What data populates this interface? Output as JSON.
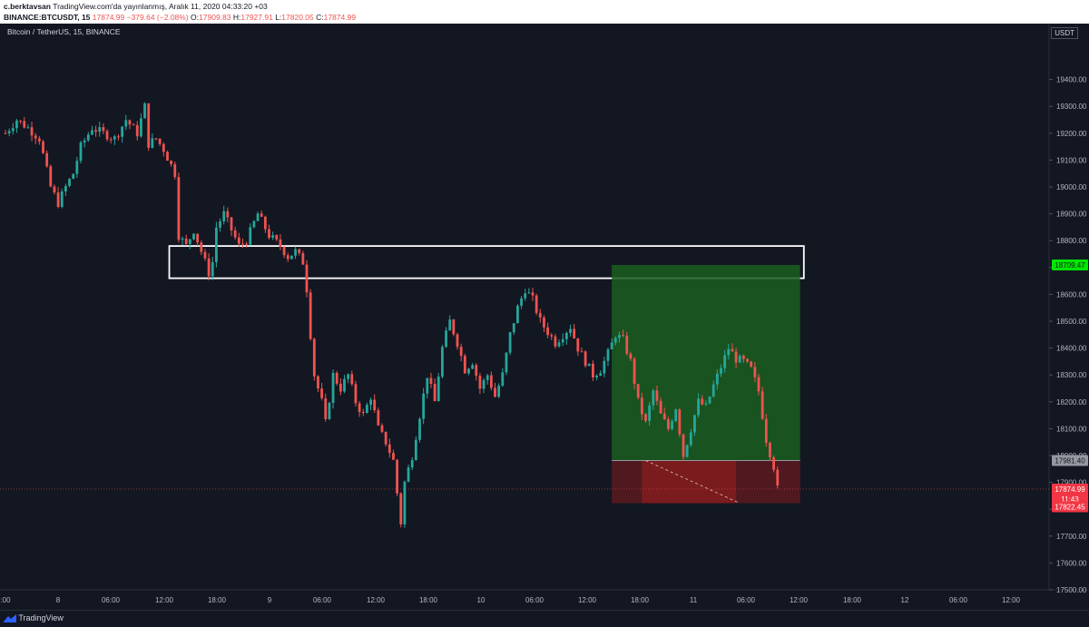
{
  "header": {
    "author": "c.berktavsan",
    "published": "TradingView.com'da yayınlanmış, Aralık 11, 2020 04:33:20 +03",
    "symbol_code": "BINANCE:BTCUSDT, 15",
    "last_price": "17874.99",
    "change": "−379.64 (−2.08%)",
    "ohlc": {
      "o_label": "O:",
      "o": "17909.83",
      "h_label": "H:",
      "h": "17927.91",
      "l_label": "L:",
      "l": "17820.05",
      "c_label": "C:",
      "c": "17874.99"
    }
  },
  "symbol_title": "Bitcoin / TetherUS, 15, BINANCE",
  "axis_unit": "USDT",
  "footer": {
    "brand": "TradingView"
  },
  "colors": {
    "up": "#26a69a",
    "down": "#ef5350",
    "background": "#131722",
    "profit_zone": "#1b5e20",
    "loss_zone": "#7f1d1d",
    "target_label": "#00e600",
    "stop_label": "#f23645"
  },
  "chart_data": {
    "type": "candlestick",
    "ylim": [
      17500,
      19500
    ],
    "y_ticks": [
      "19400.00",
      "19300.00",
      "19200.00",
      "19100.00",
      "19000.00",
      "18900.00",
      "18800.00",
      "18700.00",
      "18600.00",
      "18500.00",
      "18400.00",
      "18300.00",
      "18200.00",
      "18100.00",
      "18000.00",
      "17900.00",
      "17800.00",
      "17700.00",
      "17600.00",
      "17500.00"
    ],
    "x_ticks": [
      ":00",
      "8",
      "06:00",
      "12:00",
      "18:00",
      "9",
      "06:00",
      "12:00",
      "18:00",
      "10",
      "06:00",
      "12:00",
      "18:00",
      "11",
      "06:00",
      "12:00",
      "18:00",
      "12",
      "06:00",
      "12:00"
    ],
    "path": [
      [
        0,
        19200
      ],
      [
        3,
        19250
      ],
      [
        6,
        19220
      ],
      [
        9,
        19180
      ],
      [
        12,
        19000
      ],
      [
        14,
        18940
      ],
      [
        16,
        19000
      ],
      [
        18,
        19050
      ],
      [
        20,
        19150
      ],
      [
        23,
        19220
      ],
      [
        26,
        19200
      ],
      [
        29,
        19180
      ],
      [
        32,
        19250
      ],
      [
        35,
        19200
      ],
      [
        37,
        19300
      ],
      [
        38,
        19160
      ],
      [
        40,
        19180
      ],
      [
        42,
        19140
      ],
      [
        45,
        19050
      ],
      [
        46,
        18820
      ],
      [
        48,
        18780
      ],
      [
        50,
        18840
      ],
      [
        52,
        18760
      ],
      [
        54,
        18680
      ],
      [
        55,
        18720
      ],
      [
        56,
        18850
      ],
      [
        58,
        18900
      ],
      [
        60,
        18840
      ],
      [
        62,
        18780
      ],
      [
        64,
        18800
      ],
      [
        67,
        18900
      ],
      [
        70,
        18820
      ],
      [
        73,
        18780
      ],
      [
        75,
        18740
      ],
      [
        77,
        18760
      ],
      [
        79,
        18720
      ],
      [
        80,
        18620
      ],
      [
        81,
        18450
      ],
      [
        82,
        18300
      ],
      [
        84,
        18200
      ],
      [
        85,
        18120
      ],
      [
        87,
        18300
      ],
      [
        89,
        18250
      ],
      [
        91,
        18300
      ],
      [
        93,
        18200
      ],
      [
        95,
        18150
      ],
      [
        97,
        18220
      ],
      [
        99,
        18100
      ],
      [
        101,
        18050
      ],
      [
        103,
        17980
      ],
      [
        104,
        17860
      ],
      [
        105,
        17750
      ],
      [
        106,
        17900
      ],
      [
        108,
        18000
      ],
      [
        110,
        18150
      ],
      [
        112,
        18300
      ],
      [
        114,
        18200
      ],
      [
        116,
        18400
      ],
      [
        118,
        18500
      ],
      [
        120,
        18420
      ],
      [
        122,
        18320
      ],
      [
        124,
        18350
      ],
      [
        126,
        18250
      ],
      [
        128,
        18300
      ],
      [
        130,
        18220
      ],
      [
        132,
        18300
      ],
      [
        134,
        18450
      ],
      [
        136,
        18550
      ],
      [
        138,
        18620
      ],
      [
        140,
        18580
      ],
      [
        142,
        18500
      ],
      [
        144,
        18460
      ],
      [
        146,
        18420
      ],
      [
        148,
        18450
      ],
      [
        150,
        18480
      ],
      [
        152,
        18400
      ],
      [
        154,
        18350
      ],
      [
        156,
        18300
      ],
      [
        158,
        18320
      ],
      [
        160,
        18380
      ],
      [
        162,
        18450
      ],
      [
        164,
        18430
      ],
      [
        166,
        18350
      ],
      [
        168,
        18200
      ],
      [
        170,
        18120
      ],
      [
        172,
        18240
      ],
      [
        174,
        18150
      ],
      [
        176,
        18100
      ],
      [
        178,
        18180
      ],
      [
        180,
        18000
      ],
      [
        182,
        18100
      ],
      [
        184,
        18200
      ],
      [
        186,
        18180
      ],
      [
        188,
        18260
      ],
      [
        190,
        18330
      ],
      [
        192,
        18400
      ],
      [
        194,
        18360
      ],
      [
        196,
        18350
      ],
      [
        198,
        18320
      ],
      [
        200,
        18240
      ],
      [
        202,
        18060
      ],
      [
        204,
        17960
      ],
      [
        205,
        17875
      ]
    ],
    "extent_bars": 205,
    "annotations": {
      "zone_top": 18780,
      "zone_bottom": 18660,
      "position_entry": 17981.4,
      "position_target": 18709.47,
      "position_stop": 17822.45,
      "current_price": 17874.99,
      "target_label": "18709.47",
      "entry_label": "17981.40",
      "current_label": "17874.99",
      "countdown_label": "11:43",
      "stop_label": "17822.45"
    }
  }
}
